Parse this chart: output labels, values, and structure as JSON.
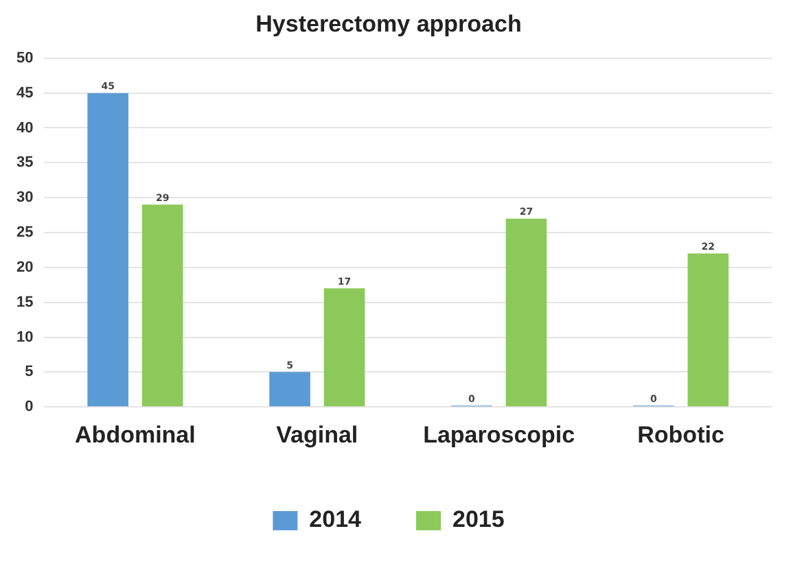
{
  "chart_data": {
    "type": "bar",
    "title": "Hysterectomy approach",
    "categories": [
      "Abdominal",
      "Vaginal",
      "Laparoscopic",
      "Robotic"
    ],
    "series": [
      {
        "name": "2014",
        "color": "#5b9bd5",
        "values": [
          45,
          5,
          0,
          0
        ]
      },
      {
        "name": "2015",
        "color": "#8cc95a",
        "values": [
          29,
          17,
          27,
          22
        ]
      }
    ],
    "ylim": [
      0,
      50
    ],
    "yticks": [
      0,
      5,
      10,
      15,
      20,
      25,
      30,
      35,
      40,
      45,
      50
    ],
    "grid": "y",
    "legend": "bottom",
    "data_labels": true
  }
}
